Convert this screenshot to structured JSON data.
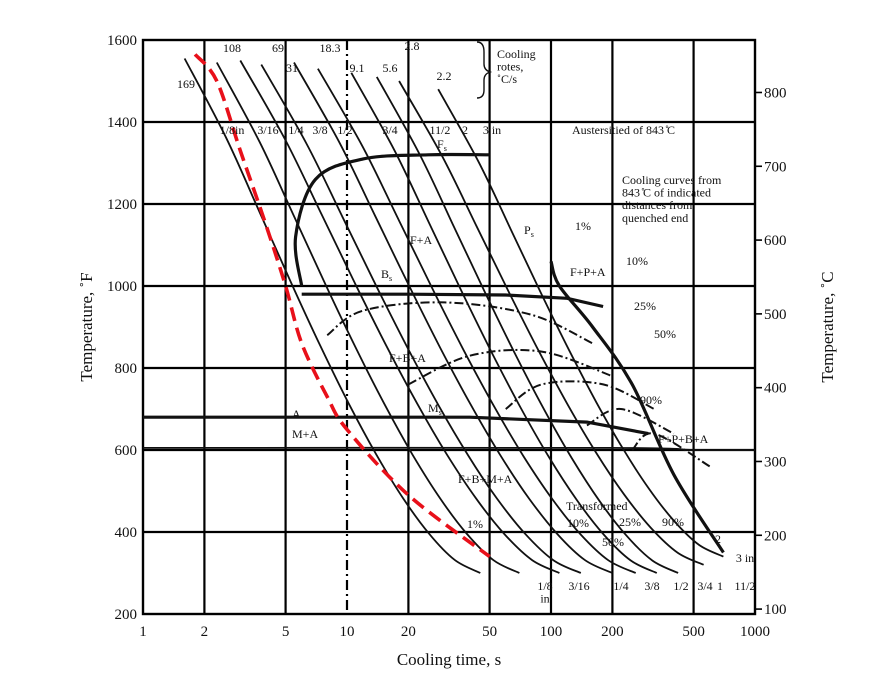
{
  "chart_data": {
    "type": "line",
    "xlabel": "Cooling time, s",
    "ylabel_left": "Temperature, ˚F",
    "ylabel_right": "Temperature, ˚C",
    "x_scale": "log",
    "xlim": [
      1,
      1000
    ],
    "ylim": [
      200,
      1600
    ],
    "x_ticks": [
      "1",
      "2",
      "5",
      "10",
      "20",
      "50",
      "100",
      "200",
      "500",
      "1000"
    ],
    "y_ticks_left": [
      "200",
      "400",
      "600",
      "800",
      "1000",
      "1200",
      "1400",
      "1600"
    ],
    "y_ticks_right": [
      "100",
      "200",
      "300",
      "400",
      "500",
      "600",
      "700",
      "800"
    ],
    "cooling_rates_label": "Cooling\nrotes,\n˚C/s",
    "cooling_rates": [
      "169",
      "108",
      "69",
      "31",
      "18.3",
      "9.1",
      "5.6",
      "2.8",
      "2.2"
    ],
    "top_distances": [
      "1/8in",
      "3/16",
      "1/4",
      "3/8",
      "1/2",
      "3/4",
      "11/2",
      "2",
      "3 in"
    ],
    "bottom_distances": [
      "1/8\nin",
      "3/16",
      "1/4",
      "3/8",
      "1/2",
      "3/4",
      "1",
      "11/2"
    ],
    "right_distances": [
      "2",
      "3 in"
    ],
    "austenitized_label": "Austersitied of 843 ̊C",
    "cooling_curves_note": "Cooling curves from\n843 ̊C of  indicated\ndistances from\nquenched end",
    "phase_labels": [
      "F+A",
      "F+P+A",
      "F+B+A",
      "F+B+M+A",
      "F+P+B+A",
      "M+A",
      "A",
      "Transformed"
    ],
    "start_labels": [
      "F_s",
      "P_s",
      "B_s",
      "M_s"
    ],
    "percent_labels": [
      "1%",
      "10%",
      "25%",
      "50%",
      "90%"
    ],
    "transformed_percents": [
      "1%",
      "10%",
      "25%",
      "50%",
      "90%"
    ],
    "highlight_curve": {
      "color": "#e8101a",
      "style": "dashed",
      "points": [
        [
          1.8,
          1565
        ],
        [
          2.3,
          1500
        ],
        [
          3,
          1330
        ],
        [
          4,
          1150
        ],
        [
          5,
          1000
        ],
        [
          6,
          860
        ],
        [
          8,
          730
        ],
        [
          10,
          650
        ],
        [
          20,
          490
        ],
        [
          50,
          340
        ]
      ]
    }
  }
}
